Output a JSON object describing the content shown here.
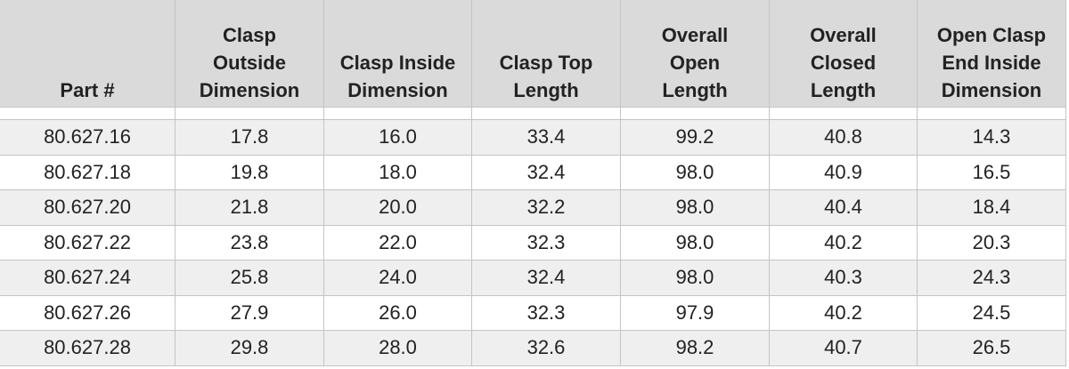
{
  "table": {
    "header": [
      [
        "Part #"
      ],
      [
        "Clasp",
        "Outside",
        "Dimension"
      ],
      [
        "Clasp Inside",
        "Dimension"
      ],
      [
        "Clasp Top",
        "Length"
      ],
      [
        "Overall",
        "Open",
        "Length"
      ],
      [
        "Overall",
        "Closed",
        "Length"
      ],
      [
        "Open Clasp",
        "End Inside",
        "Dimension"
      ]
    ],
    "rows": [
      [
        "80.627.16",
        "17.8",
        "16.0",
        "33.4",
        "99.2",
        "40.8",
        "14.3"
      ],
      [
        "80.627.18",
        "19.8",
        "18.0",
        "32.4",
        "98.0",
        "40.9",
        "16.5"
      ],
      [
        "80.627.20",
        "21.8",
        "20.0",
        "32.2",
        "98.0",
        "40.4",
        "18.4"
      ],
      [
        "80.627.22",
        "23.8",
        "22.0",
        "32.3",
        "98.0",
        "40.2",
        "20.3"
      ],
      [
        "80.627.24",
        "25.8",
        "24.0",
        "32.4",
        "98.0",
        "40.3",
        "24.3"
      ],
      [
        "80.627.26",
        "27.9",
        "26.0",
        "32.3",
        "97.9",
        "40.2",
        "24.5"
      ],
      [
        "80.627.28",
        "29.8",
        "28.0",
        "32.6",
        "98.2",
        "40.7",
        "26.5"
      ]
    ]
  }
}
